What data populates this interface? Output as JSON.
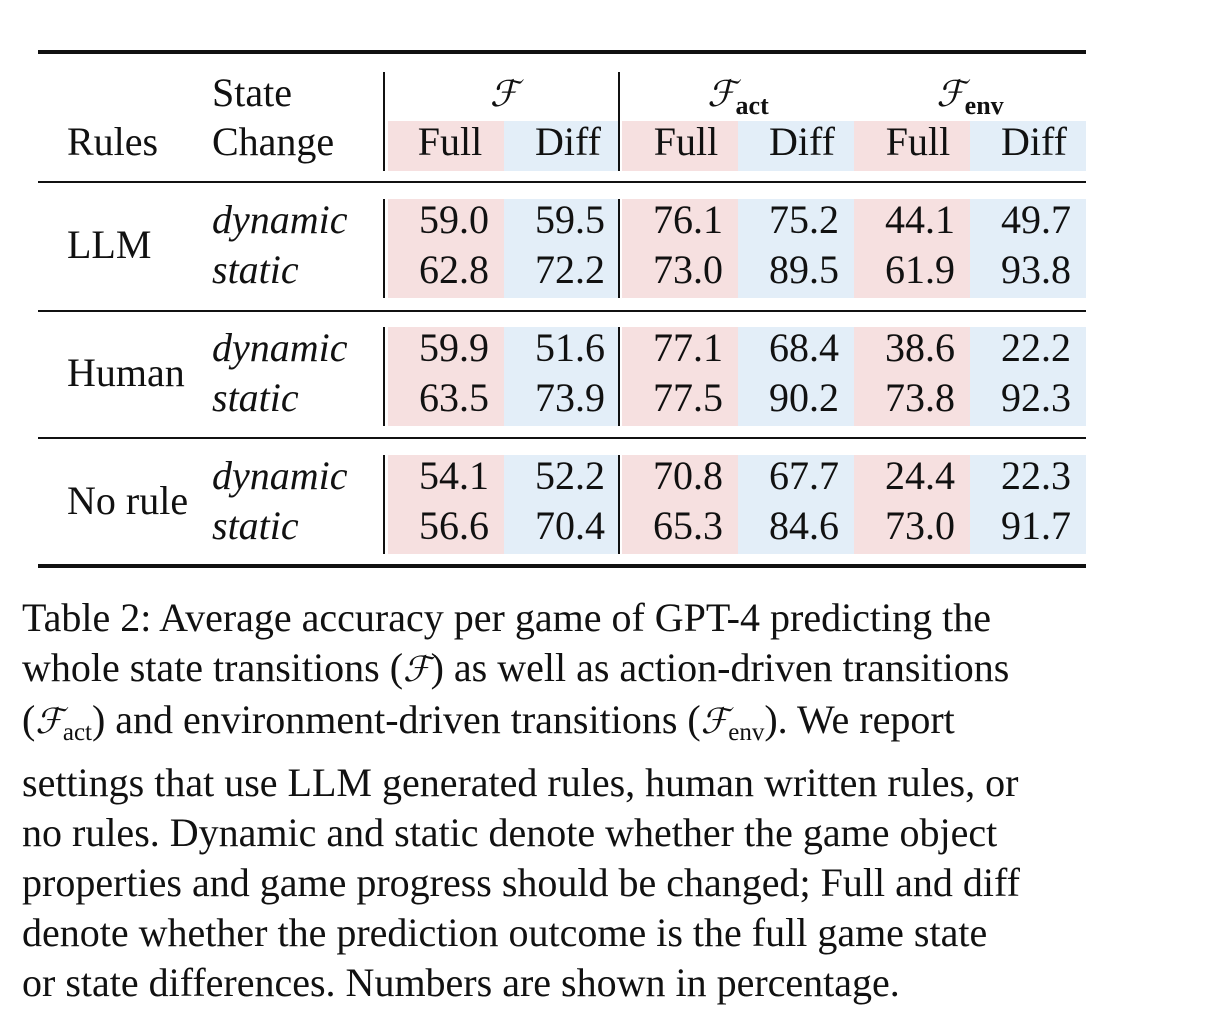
{
  "table": {
    "header": {
      "rules": "Rules",
      "state_line1": "State",
      "state_line2": "Change",
      "groups": [
        {
          "symbol": "ℱ",
          "sub": ""
        },
        {
          "symbol": "ℱ",
          "sub": "act"
        },
        {
          "symbol": "ℱ",
          "sub": "env"
        }
      ],
      "full": "Full",
      "diff": "Diff"
    },
    "sections": [
      {
        "rule": "LLM",
        "rows": [
          {
            "state": "dynamic",
            "values": [
              "59.0",
              "59.5",
              "76.1",
              "75.2",
              "44.1",
              "49.7"
            ]
          },
          {
            "state": "static",
            "values": [
              "62.8",
              "72.2",
              "73.0",
              "89.5",
              "61.9",
              "93.8"
            ]
          }
        ]
      },
      {
        "rule": "Human",
        "rows": [
          {
            "state": "dynamic",
            "values": [
              "59.9",
              "51.6",
              "77.1",
              "68.4",
              "38.6",
              "22.2"
            ]
          },
          {
            "state": "static",
            "values": [
              "63.5",
              "73.9",
              "77.5",
              "90.2",
              "73.8",
              "92.3"
            ]
          }
        ]
      },
      {
        "rule": "No rule",
        "rows": [
          {
            "state": "dynamic",
            "values": [
              "54.1",
              "52.2",
              "70.8",
              "67.7",
              "24.4",
              "22.3"
            ]
          },
          {
            "state": "static",
            "values": [
              "56.6",
              "70.4",
              "65.3",
              "84.6",
              "73.0",
              "91.7"
            ]
          }
        ]
      }
    ]
  },
  "caption": {
    "label": "Table 2:",
    "l1": "Average accuracy per game of GPT-4 predicting the",
    "l2a": "whole state transitions (",
    "l2_sym": "ℱ",
    "l2b": ") as well as action-driven transitions",
    "l3a": "(",
    "l3_sym1": "ℱ",
    "l3_sub1": "act",
    "l3b": ") and environment-driven transitions (",
    "l3_sym2": "ℱ",
    "l3_sub2": "env",
    "l3c": ").  We report",
    "l4": "settings that use LLM generated rules, human written rules, or",
    "l5": "no rules. Dynamic and static denote whether the game object",
    "l6": "properties and game progress should be changed; Full and diff",
    "l7": "denote whether the prediction outcome is the full game state",
    "l8": "or state differences. Numbers are shown in percentage."
  },
  "colors": {
    "full_bg": "#f6e0e0",
    "diff_bg": "#e3eef8",
    "rule_line": "#111111"
  }
}
